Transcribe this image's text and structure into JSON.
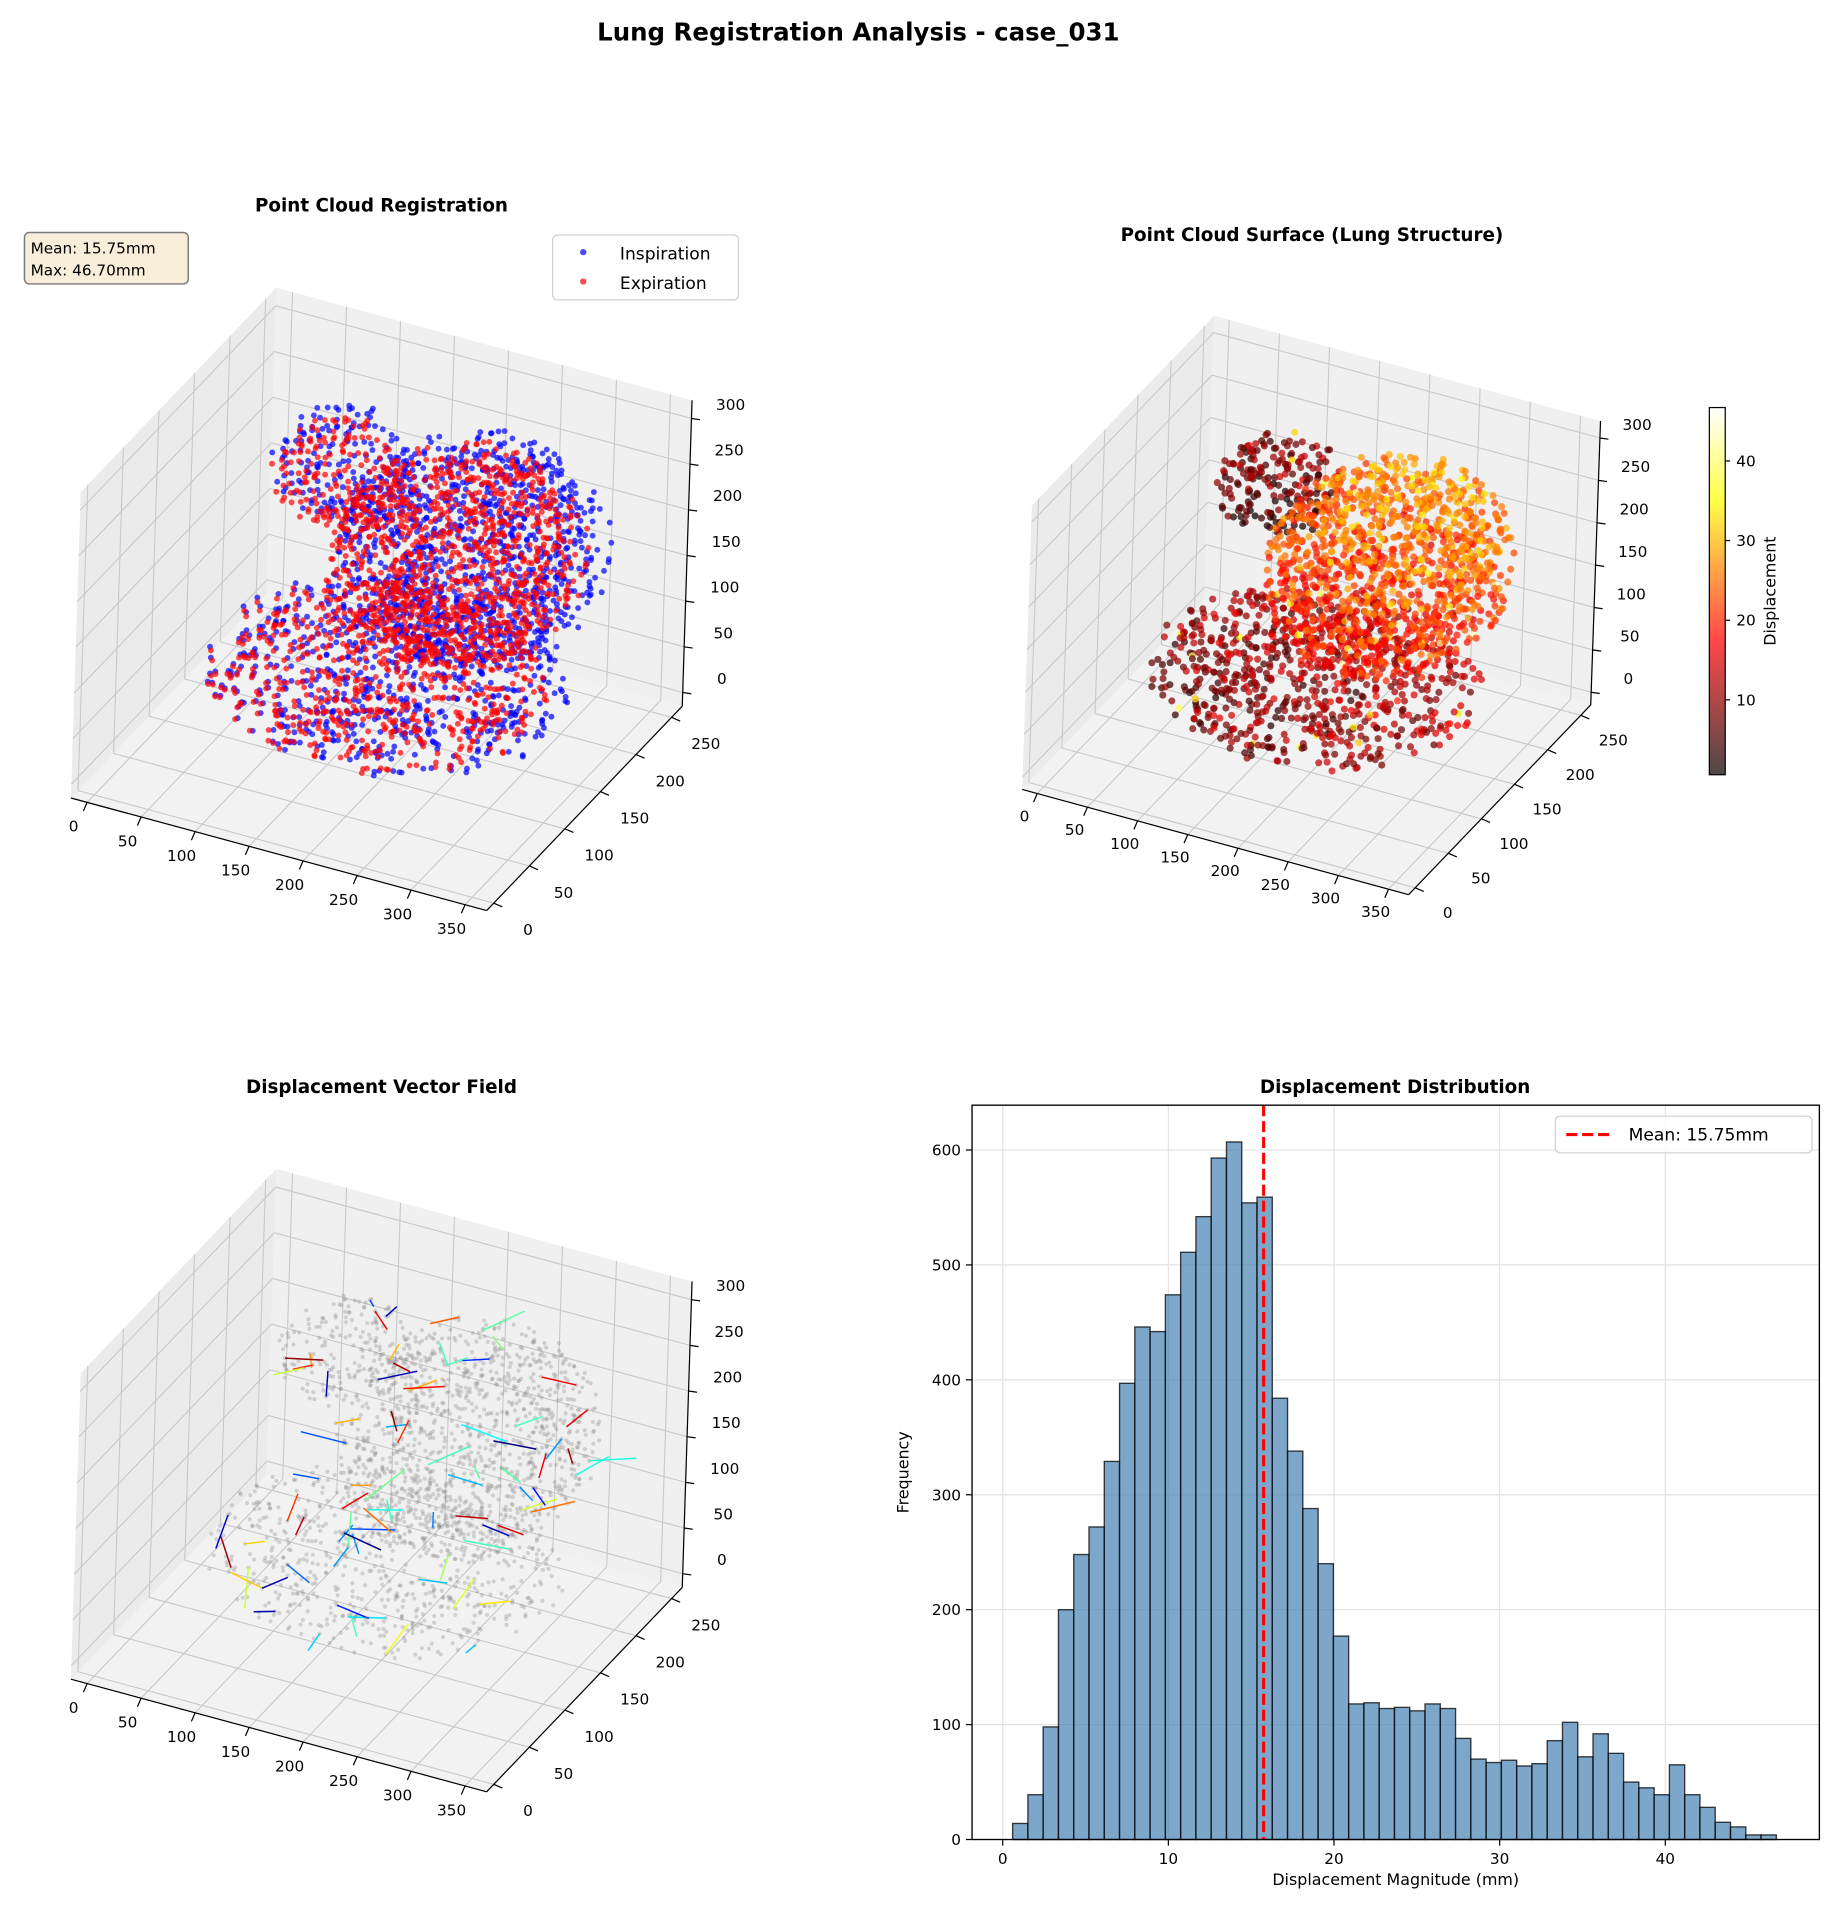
{
  "figure": {
    "title": "Lung Registration Analysis - case_031"
  },
  "chart_data": [
    {
      "type": "scatter3d",
      "title": "Point Cloud Registration",
      "legend": {
        "position": "top-right",
        "entries": [
          {
            "name": "Inspiration",
            "color": "#0000ff"
          },
          {
            "name": "Expiration",
            "color": "#ff0000"
          }
        ]
      },
      "annotation": [
        "Mean: 15.75mm",
        "Max: 46.70mm"
      ],
      "x_ticks": [
        "0",
        "50",
        "100",
        "150",
        "200",
        "250",
        "300",
        "350"
      ],
      "y_ticks": [
        "0",
        "50",
        "100",
        "150",
        "200",
        "250"
      ],
      "z_ticks": [
        "0",
        "50",
        "100",
        "150",
        "200",
        "250",
        "300"
      ],
      "xlim": [
        -15,
        370
      ],
      "ylim": [
        -10,
        265
      ],
      "zlim": [
        -15,
        320
      ],
      "grid": true
    },
    {
      "type": "scatter3d",
      "title": "Point Cloud Surface (Lung Structure)",
      "colormap": "hot",
      "colorbar": {
        "label": "Displacement",
        "range": [
          0.6,
          46.7
        ],
        "ticks": [
          "10",
          "20",
          "30",
          "40"
        ]
      },
      "x_ticks": [
        "0",
        "50",
        "100",
        "150",
        "200",
        "250",
        "300",
        "350"
      ],
      "y_ticks": [
        "0",
        "50",
        "100",
        "150",
        "200",
        "250"
      ],
      "z_ticks": [
        "0",
        "50",
        "100",
        "150",
        "200",
        "250",
        "300"
      ],
      "xlim": [
        -15,
        370
      ],
      "ylim": [
        -10,
        265
      ],
      "zlim": [
        -15,
        320
      ],
      "grid": true
    },
    {
      "type": "quiver3d",
      "title": "Displacement Vector Field",
      "point_color": "#808080",
      "colormap": "jet",
      "x_ticks": [
        "0",
        "50",
        "100",
        "150",
        "200",
        "250",
        "300",
        "350"
      ],
      "y_ticks": [
        "0",
        "50",
        "100",
        "150",
        "200",
        "250"
      ],
      "z_ticks": [
        "0",
        "50",
        "100",
        "150",
        "200",
        "250",
        "300"
      ],
      "xlim": [
        -15,
        370
      ],
      "ylim": [
        -10,
        265
      ],
      "zlim": [
        -15,
        320
      ],
      "grid": true
    },
    {
      "type": "bar",
      "subtype": "histogram",
      "title": "Displacement Distribution",
      "xlabel": "Displacement Magnitude (mm)",
      "ylabel": "Frequency",
      "bin_start": 0.6,
      "bin_end": 46.7,
      "counts": [
        14,
        39,
        98,
        200,
        248,
        272,
        329,
        397,
        446,
        442,
        474,
        511,
        542,
        593,
        607,
        554,
        559,
        384,
        338,
        288,
        240,
        177,
        118,
        119,
        114,
        115,
        112,
        118,
        114,
        88,
        70,
        67,
        69,
        64,
        66,
        86,
        102,
        72,
        92,
        75,
        50,
        45,
        39,
        65,
        39,
        28,
        15,
        11,
        4,
        4
      ],
      "bar_color": "#4682b4",
      "mean_line": {
        "value": 15.75,
        "label": "Mean: 15.75mm",
        "color": "#ff0000"
      },
      "x_ticks": [
        0,
        10,
        20,
        30,
        40
      ],
      "y_ticks": [
        0,
        100,
        200,
        300,
        400,
        500,
        600
      ],
      "xlim": [
        -1.85,
        49.3
      ],
      "ylim": [
        0,
        639
      ],
      "legend": {
        "position": "top-right"
      },
      "grid": true
    }
  ]
}
